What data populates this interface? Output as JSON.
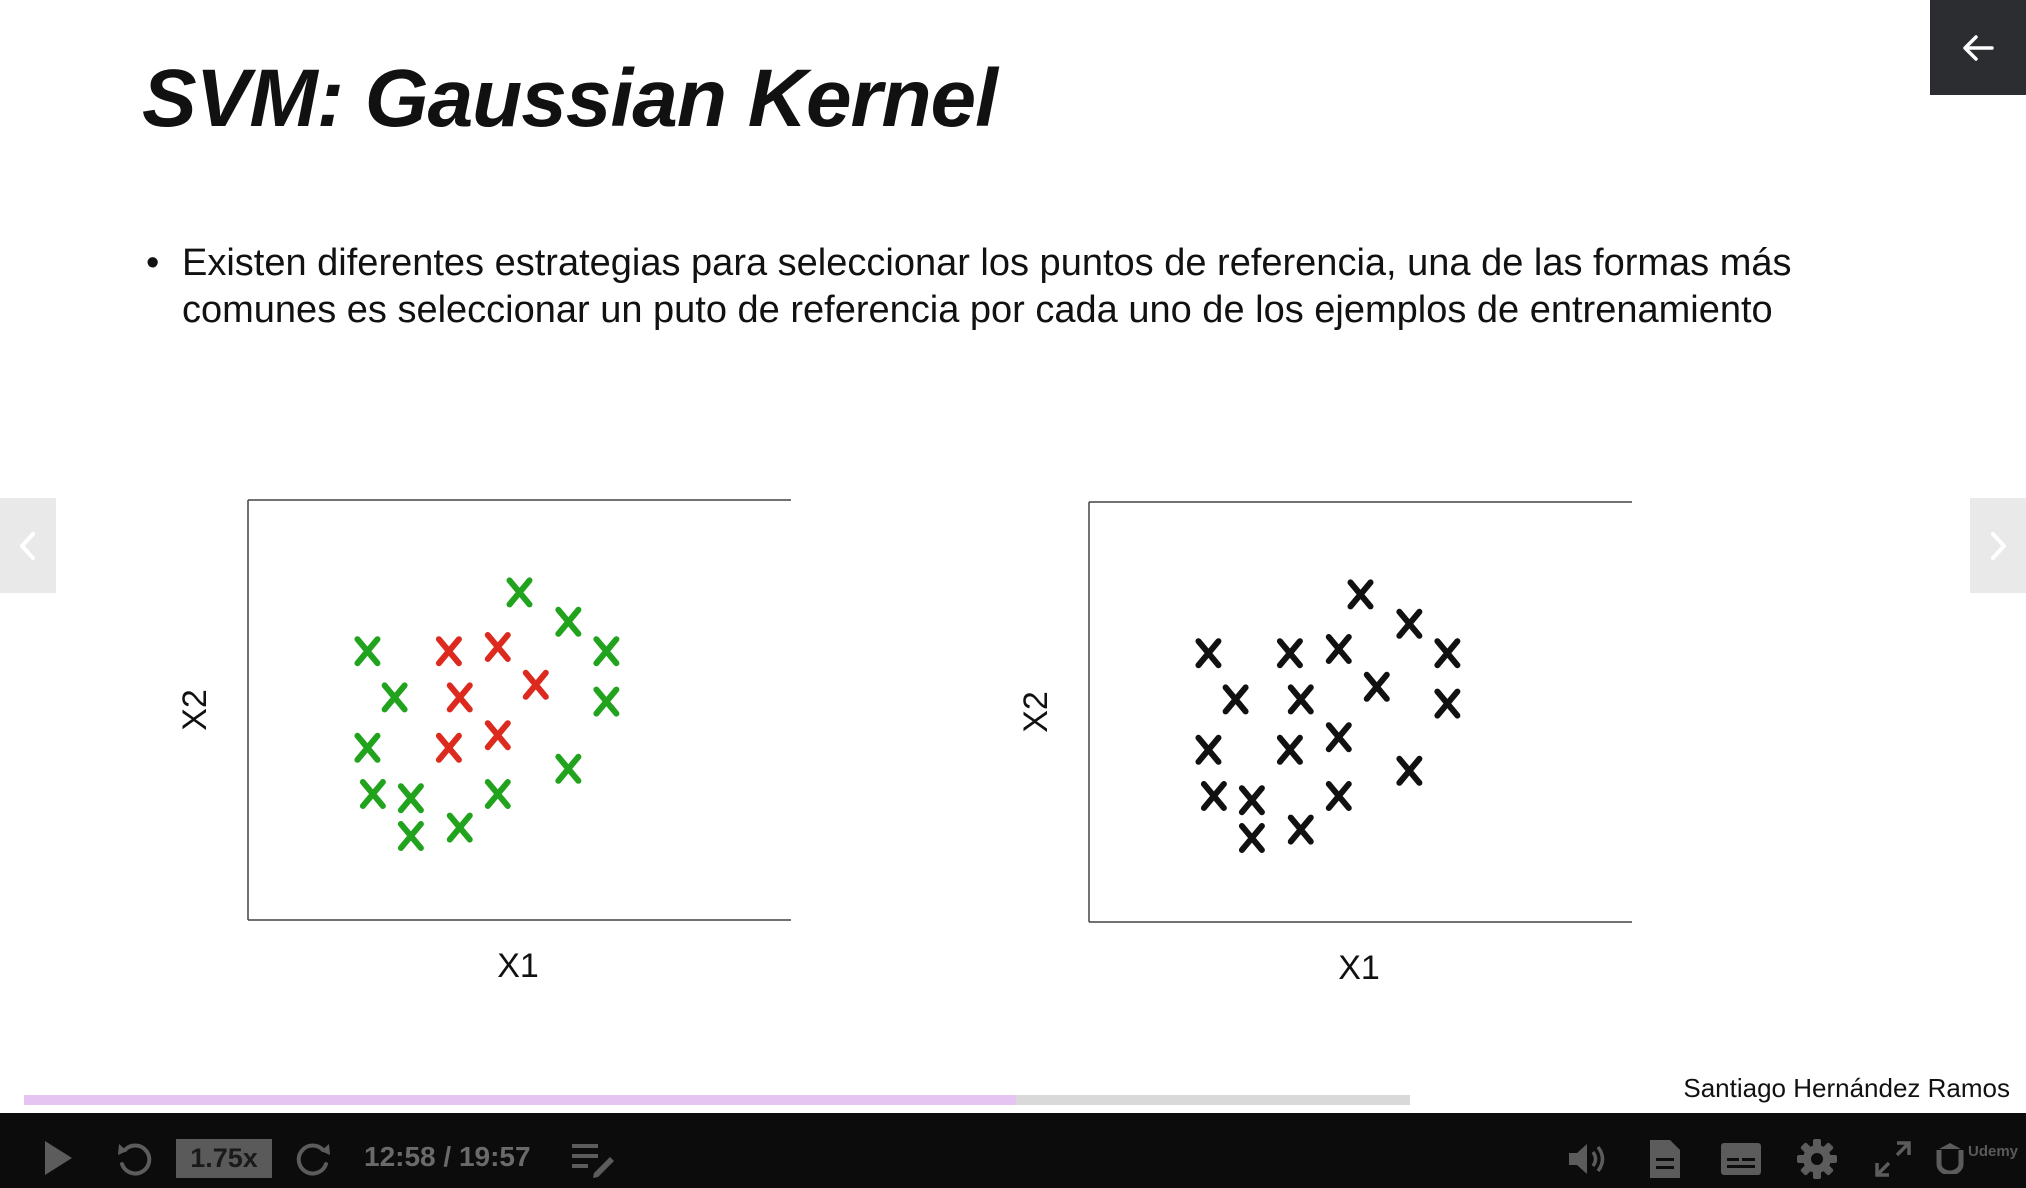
{
  "slide": {
    "title": "SVM: Gaussian Kernel",
    "bullet": "Existen diferentes estrategias para seleccionar los puntos de referencia, una de las formas más comunes es seleccionar un puto de referencia por cada uno de los ejemplos de entrenamiento",
    "author": "Santiago Hernández Ramos"
  },
  "chart_data": [
    {
      "type": "scatter",
      "title": "",
      "xlabel": "X1",
      "ylabel": "X2",
      "marker": "x",
      "xlim": [
        0,
        10
      ],
      "ylim": [
        0,
        10
      ],
      "series": [
        {
          "color": "#22a31e",
          "points": [
            [
              5.0,
              7.8
            ],
            [
              5.9,
              7.1
            ],
            [
              2.2,
              6.4
            ],
            [
              6.6,
              6.4
            ],
            [
              2.7,
              5.3
            ],
            [
              6.6,
              5.2
            ],
            [
              2.2,
              4.1
            ],
            [
              5.9,
              3.6
            ],
            [
              2.3,
              3.0
            ],
            [
              3.0,
              2.9
            ],
            [
              4.6,
              3.0
            ],
            [
              3.9,
              2.2
            ],
            [
              3.0,
              2.0
            ]
          ]
        },
        {
          "color": "#dd2a1f",
          "points": [
            [
              3.7,
              6.4
            ],
            [
              4.6,
              6.5
            ],
            [
              5.3,
              5.6
            ],
            [
              3.9,
              5.3
            ],
            [
              3.7,
              4.1
            ],
            [
              4.6,
              4.4
            ]
          ]
        }
      ]
    },
    {
      "type": "scatter",
      "title": "",
      "xlabel": "X1",
      "ylabel": "X2",
      "marker": "x",
      "xlim": [
        0,
        10
      ],
      "ylim": [
        0,
        10
      ],
      "series": [
        {
          "color": "#111111",
          "points": [
            [
              5.0,
              7.8
            ],
            [
              5.9,
              7.1
            ],
            [
              2.2,
              6.4
            ],
            [
              6.6,
              6.4
            ],
            [
              2.7,
              5.3
            ],
            [
              6.6,
              5.2
            ],
            [
              2.2,
              4.1
            ],
            [
              5.9,
              3.6
            ],
            [
              2.3,
              3.0
            ],
            [
              3.0,
              2.9
            ],
            [
              4.6,
              3.0
            ],
            [
              3.9,
              2.2
            ],
            [
              3.0,
              2.0
            ],
            [
              3.7,
              6.4
            ],
            [
              4.6,
              6.5
            ],
            [
              5.3,
              5.6
            ],
            [
              3.9,
              5.3
            ],
            [
              3.7,
              4.1
            ],
            [
              4.6,
              4.4
            ]
          ]
        }
      ]
    }
  ],
  "player": {
    "speed": "1.75x",
    "time": "12:58 / 19:57",
    "progress": 0.716,
    "brand": "Udemy",
    "icons": {
      "back": "arrow-left-icon",
      "prev": "chevron-left-icon",
      "next": "chevron-right-icon",
      "play": "play-icon",
      "rewind": "rewind-icon",
      "forward": "forward-icon",
      "notes": "notes-icon",
      "volume": "volume-icon",
      "transcript": "transcript-icon",
      "captions": "captions-icon",
      "settings": "gear-icon",
      "fullscreen": "fullscreen-icon"
    }
  }
}
